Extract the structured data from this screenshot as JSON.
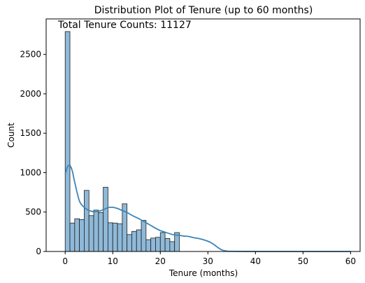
{
  "chart_data": {
    "type": "bar",
    "title": "Distribution Plot of Tenure (up to 60 months)",
    "xlabel": "Tenure (months)",
    "ylabel": "Count",
    "annotation": "Total Tenure Counts: 11127",
    "xlim": [
      -4,
      62
    ],
    "ylim": [
      0,
      2950
    ],
    "xticks": [
      0,
      10,
      20,
      30,
      40,
      50,
      60
    ],
    "yticks": [
      0,
      500,
      1000,
      1500,
      2000,
      2500
    ],
    "grid": false,
    "bar_color": "#8fb9d8",
    "bar_edge_color": "#1f1f1f",
    "kde_color": "#3c84b7",
    "bins": {
      "start": 0,
      "width": 1.0,
      "counts": [
        2790,
        360,
        415,
        405,
        775,
        455,
        525,
        495,
        815,
        365,
        360,
        350,
        605,
        215,
        255,
        275,
        395,
        150,
        170,
        180,
        240,
        165,
        125,
        240
      ]
    },
    "kde": {
      "x": [
        0,
        0.5,
        1,
        1.5,
        2,
        3,
        4,
        5,
        6,
        7,
        8,
        9,
        10,
        11,
        12,
        13,
        14,
        15,
        16,
        17,
        18,
        19,
        20,
        21,
        22,
        23,
        24,
        25,
        26,
        27,
        28,
        29,
        30,
        31,
        32,
        33,
        34,
        35,
        40,
        50,
        60
      ],
      "y": [
        980,
        1075,
        1090,
        1020,
        880,
        640,
        560,
        520,
        505,
        510,
        530,
        555,
        560,
        545,
        520,
        495,
        460,
        430,
        400,
        365,
        330,
        295,
        265,
        245,
        225,
        210,
        205,
        195,
        190,
        175,
        165,
        150,
        130,
        100,
        55,
        18,
        5,
        2,
        0,
        0,
        0
      ]
    }
  }
}
